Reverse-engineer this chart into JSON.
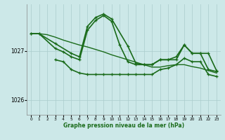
{
  "xlabel": "Graphe pression niveau de la mer (hPa)",
  "ylim": [
    1025.7,
    1027.95
  ],
  "xlim": [
    -0.5,
    23.5
  ],
  "yticks": [
    1026,
    1027
  ],
  "xticks": [
    0,
    1,
    2,
    3,
    4,
    5,
    6,
    7,
    8,
    9,
    10,
    11,
    12,
    13,
    14,
    15,
    16,
    17,
    18,
    19,
    20,
    21,
    22,
    23
  ],
  "bg_color": "#cce8e8",
  "grid_color": "#aacccc",
  "line_color": "#1a6b1a",
  "series": [
    {
      "x": [
        0,
        1,
        2,
        3,
        4,
        5,
        6,
        7,
        8,
        9,
        10,
        11,
        12,
        13,
        14,
        15,
        16,
        17,
        18,
        19,
        20,
        21,
        22,
        23
      ],
      "y": [
        1027.35,
        1027.35,
        1027.33,
        1027.28,
        1027.22,
        1027.17,
        1027.12,
        1027.08,
        1027.03,
        1026.98,
        1026.92,
        1026.87,
        1026.82,
        1026.77,
        1026.72,
        1026.67,
        1026.67,
        1026.7,
        1026.72,
        1026.72,
        1026.68,
        1026.65,
        1026.6,
        1026.55
      ],
      "marker": false,
      "lw": 1.0
    },
    {
      "x": [
        0,
        1,
        3,
        5,
        6,
        7,
        8,
        9,
        10,
        12,
        13,
        14,
        15,
        16,
        17,
        18,
        19,
        20,
        21,
        22,
        23
      ],
      "y": [
        1027.35,
        1027.35,
        1027.15,
        1026.95,
        1026.88,
        1027.5,
        1027.68,
        1027.75,
        1027.65,
        1027.1,
        1026.75,
        1026.72,
        1026.72,
        1026.82,
        1026.82,
        1026.82,
        1027.12,
        1026.95,
        1026.95,
        1026.95,
        1026.6
      ],
      "marker": true,
      "lw": 1.2
    },
    {
      "x": [
        0,
        1,
        3,
        4,
        5,
        6,
        7,
        8,
        9,
        10,
        11,
        12,
        13,
        14,
        15,
        16,
        17,
        18,
        19,
        20,
        21,
        22,
        23
      ],
      "y": [
        1027.35,
        1027.35,
        1027.05,
        1026.98,
        1026.88,
        1026.82,
        1027.42,
        1027.62,
        1027.72,
        1027.6,
        1027.12,
        1026.78,
        1026.72,
        1026.72,
        1026.72,
        1026.82,
        1026.82,
        1026.88,
        1027.12,
        1026.95,
        1026.95,
        1026.62,
        1026.58
      ],
      "marker": true,
      "lw": 1.2
    },
    {
      "x": [
        3,
        4,
        5,
        6,
        7,
        8,
        9,
        10,
        11,
        12,
        13,
        14,
        15,
        16,
        17,
        18,
        19,
        20,
        21,
        22,
        23
      ],
      "y": [
        1026.82,
        1026.78,
        1026.62,
        1026.55,
        1026.52,
        1026.52,
        1026.52,
        1026.52,
        1026.52,
        1026.52,
        1026.52,
        1026.52,
        1026.52,
        1026.62,
        1026.65,
        1026.72,
        1026.85,
        1026.78,
        1026.78,
        1026.52,
        1026.48
      ],
      "marker": true,
      "lw": 1.2
    }
  ]
}
